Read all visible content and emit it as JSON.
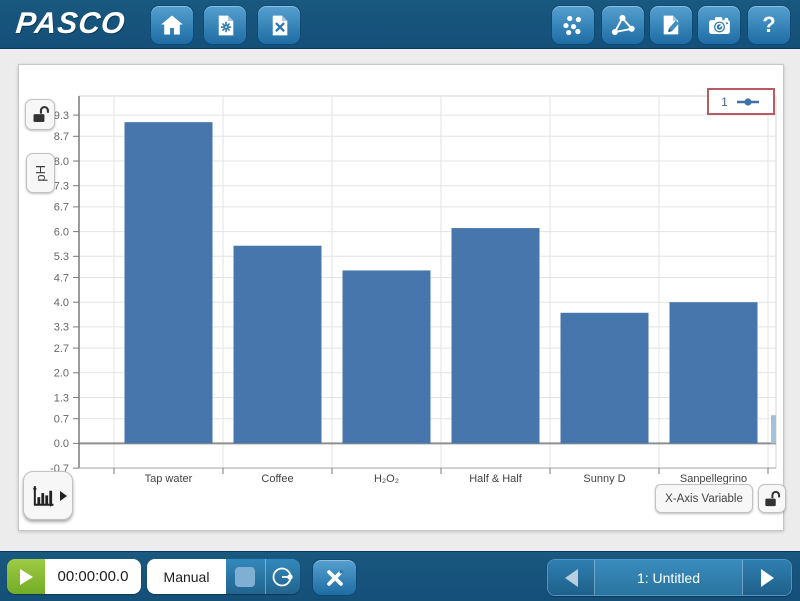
{
  "brand": "PASCO",
  "top_toolbar": {
    "help_glyph": "?"
  },
  "chart_page": {
    "legend": {
      "run_label": "1"
    },
    "y_axis_variable": "pH",
    "x_axis_button_label": "X-Axis Variable"
  },
  "chart_data": {
    "type": "bar",
    "title": "",
    "xlabel": "",
    "ylabel": "pH",
    "categories": [
      "Tap water",
      "Coffee",
      "H₂O₂",
      "Half & Half",
      "Sunny D",
      "Sanpellegrino"
    ],
    "values": [
      9.1,
      5.6,
      4.9,
      6.1,
      3.7,
      4.0
    ],
    "partial_bar": {
      "value": 0.8,
      "color": "#a6c0da"
    },
    "ylim": [
      -0.7,
      9.7
    ],
    "yticks": [
      "9.3",
      "8.7",
      "8.0",
      "7.3",
      "6.7",
      "6.0",
      "5.3",
      "4.7",
      "4.0",
      "3.3",
      "2.7",
      "2.0",
      "1.3",
      "0.7",
      "0.0",
      "-0.7"
    ],
    "grid": true,
    "bar_color": "#4676ab",
    "axis_color": "#7a7a7a",
    "legend_position": "top-right",
    "legend_entries": [
      "1"
    ]
  },
  "bottom_bar": {
    "timer_value": "00:00:00.0",
    "mode_label": "Manual",
    "page_nav_label": "1: Untitled"
  },
  "colors": {
    "chrome": "#16557f",
    "button_accent": "#2b77ae",
    "play_green": "#84bd32",
    "legend_border": "#b85c63"
  }
}
